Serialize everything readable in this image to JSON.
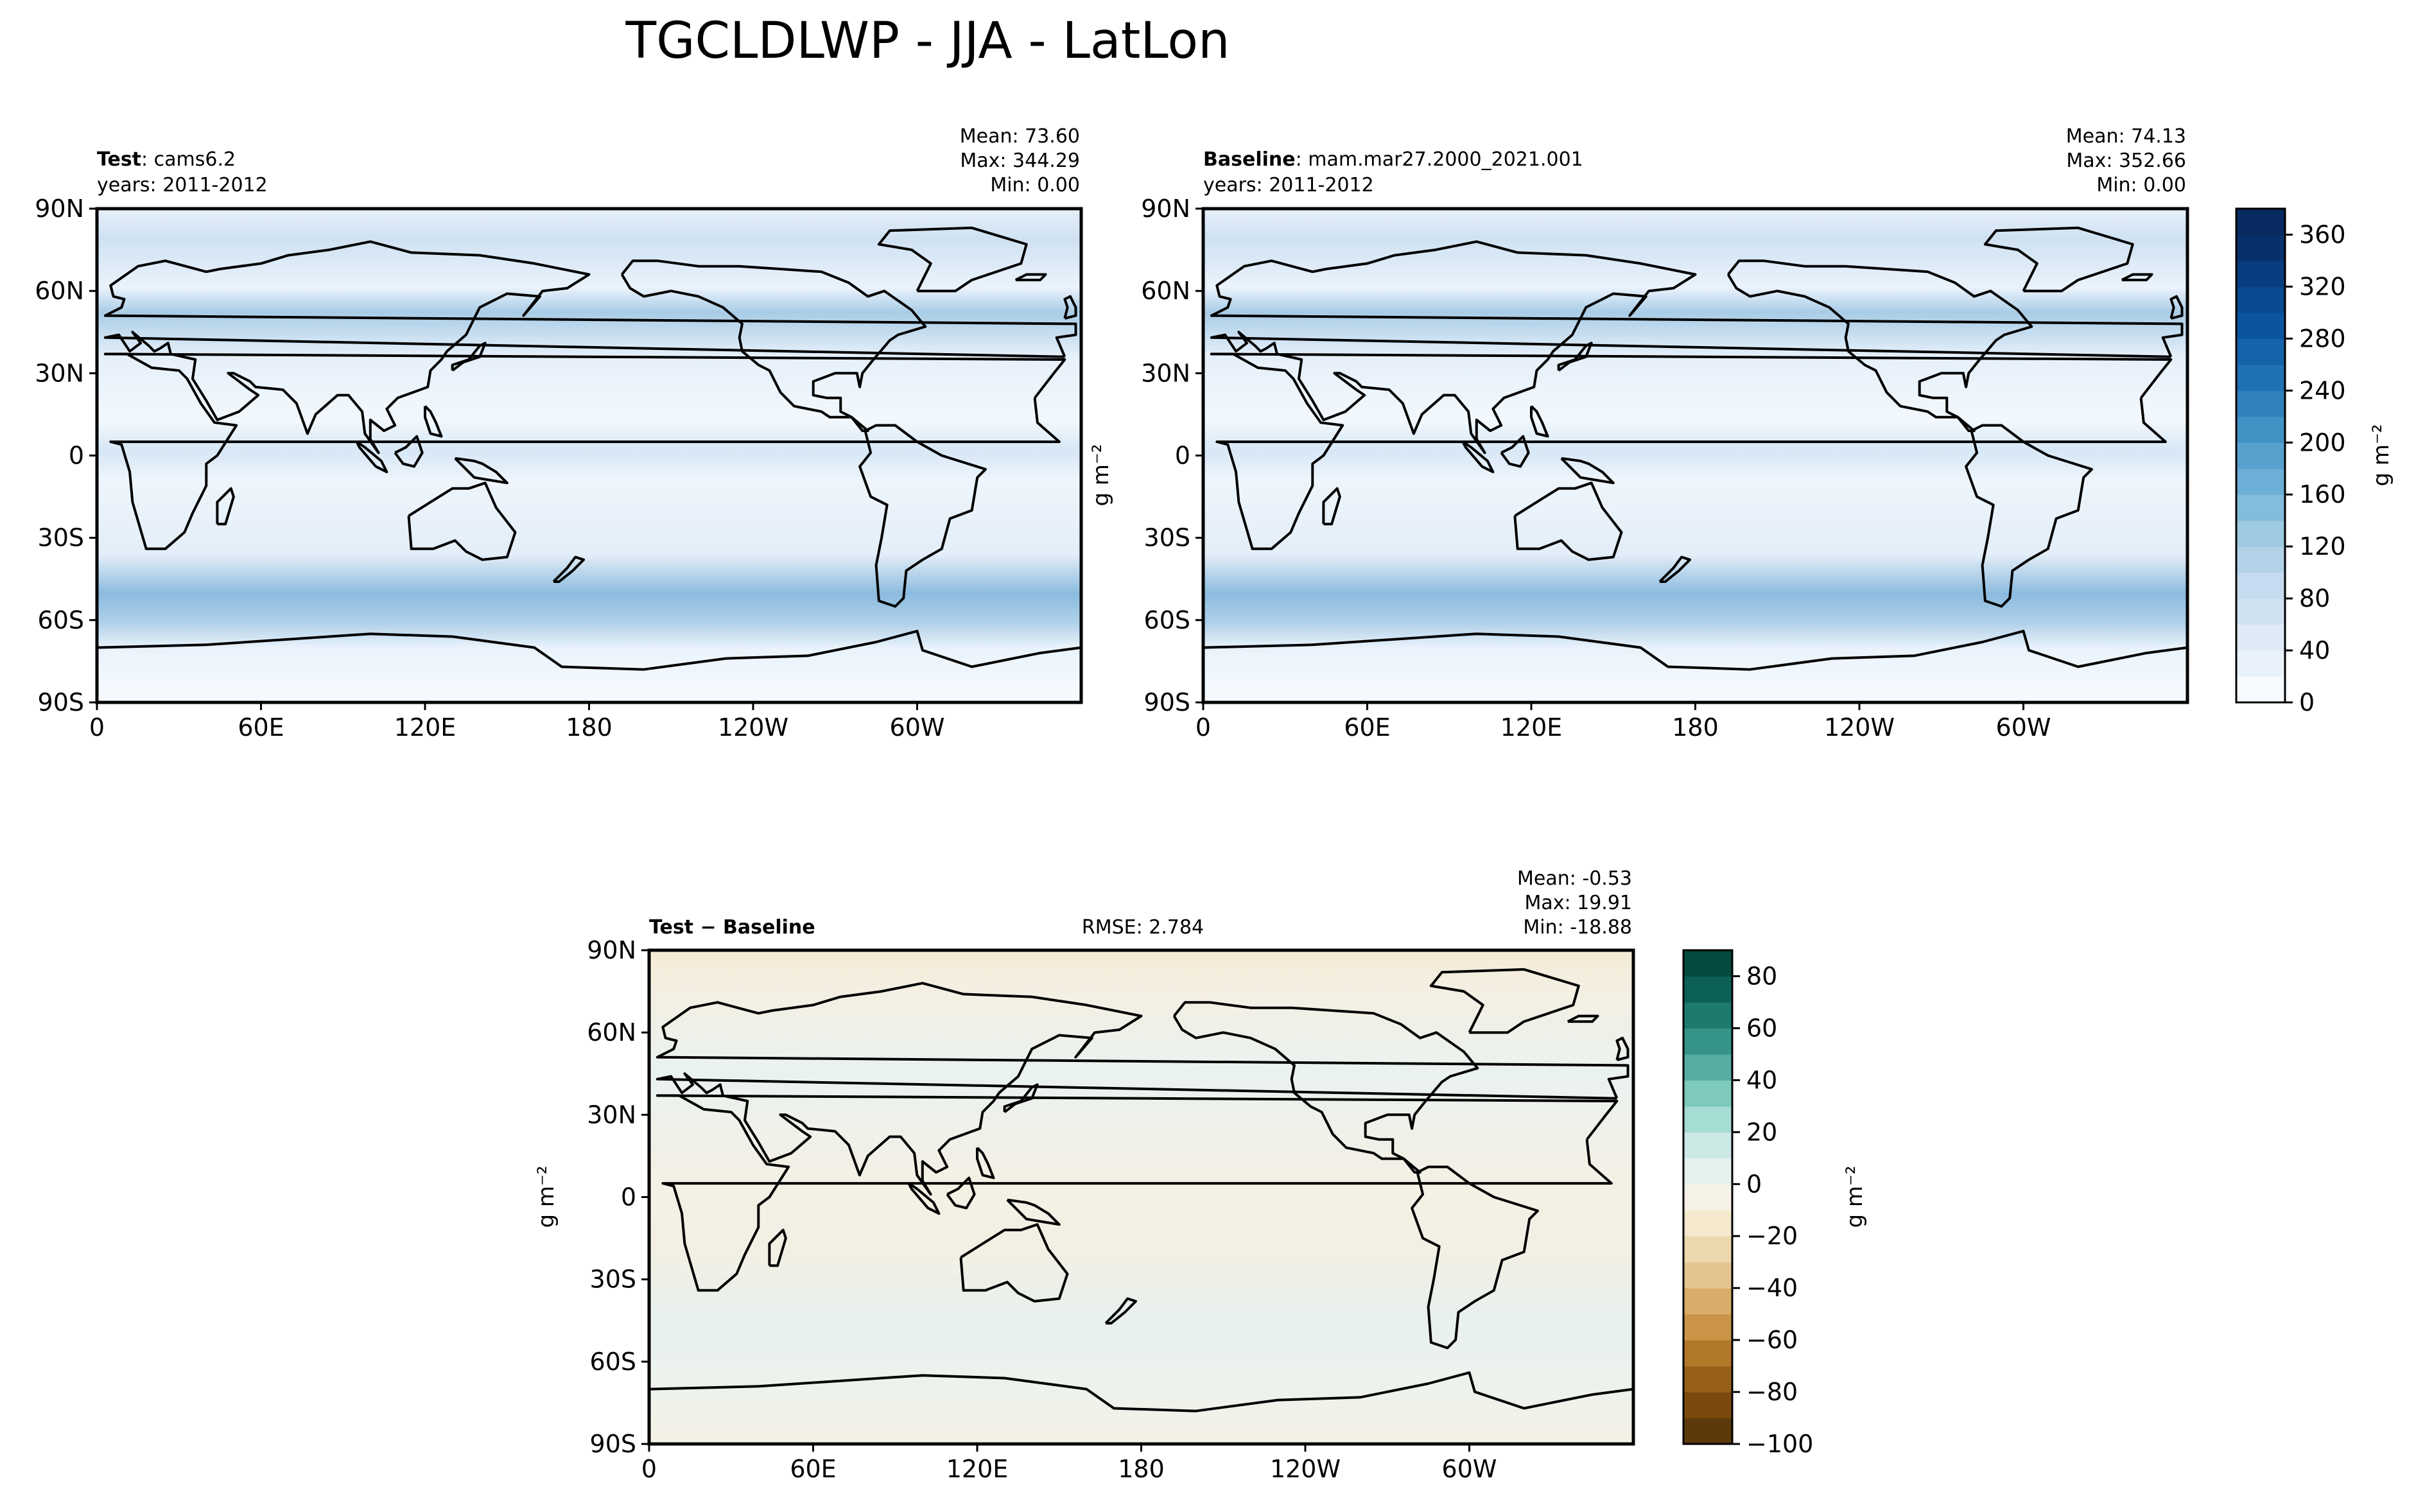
{
  "title": "TGCLDLWP - JJA - LatLon",
  "colors": {
    "frame": "#000000",
    "coast": "#000000",
    "ocean_base": "#eef5fc",
    "diff_base": "#f2efe2"
  },
  "panels": {
    "test": {
      "label_bold": "Test",
      "label_rest": ": cams6.2",
      "years": "years: 2011-2012",
      "mean": "Mean: 73.60",
      "max": "Max: 344.29",
      "min": "Min:  0.00"
    },
    "baseline": {
      "label_bold": "Baseline",
      "label_rest": ": mam.mar27.2000_2021.001",
      "years": "years: 2011-2012",
      "mean": "Mean: 74.13",
      "max": "Max: 352.66",
      "min": "Min:  0.00"
    },
    "diff": {
      "label": "Test − Baseline",
      "rmse": "RMSE: 2.784",
      "mean": "Mean: -0.53",
      "max": "Max: 19.91",
      "min": "Min: -18.88"
    }
  },
  "units": "g m⁻²",
  "chart_data": [
    {
      "type": "heatmap",
      "name": "Test",
      "variable": "TGCLDLWP",
      "xticks": [
        "0",
        "60E",
        "120E",
        "180",
        "120W",
        "60W"
      ],
      "yticks": [
        "90N",
        "60N",
        "30N",
        "0",
        "30S",
        "60S",
        "90S"
      ],
      "stats": {
        "mean": 73.6,
        "max": 344.29,
        "min": 0.0
      }
    },
    {
      "type": "heatmap",
      "name": "Baseline",
      "variable": "TGCLDLWP",
      "xticks": [
        "0",
        "60E",
        "120E",
        "180",
        "120W",
        "60W"
      ],
      "yticks": [
        "90N",
        "60N",
        "30N",
        "0",
        "30S",
        "60S",
        "90S"
      ],
      "stats": {
        "mean": 74.13,
        "max": 352.66,
        "min": 0.0
      }
    },
    {
      "type": "heatmap",
      "name": "Test − Baseline",
      "variable": "TGCLDLWP",
      "xticks": [
        "0",
        "60E",
        "120E",
        "180",
        "120W",
        "60W"
      ],
      "yticks": [
        "90N",
        "60N",
        "30N",
        "0",
        "30S",
        "60S",
        "90S"
      ],
      "stats": {
        "mean": -0.53,
        "max": 19.91,
        "min": -18.88,
        "rmse": 2.784
      }
    }
  ],
  "colorbars": {
    "main": {
      "levels": [
        0,
        20,
        40,
        60,
        80,
        100,
        120,
        140,
        160,
        180,
        200,
        220,
        240,
        260,
        280,
        300,
        320,
        340,
        360,
        380
      ],
      "ticks": [
        "0",
        "40",
        "80",
        "120",
        "160",
        "200",
        "240",
        "280",
        "320",
        "360"
      ],
      "colors": [
        "#f7fbff",
        "#e9f2fa",
        "#deebf7",
        "#d0e2f2",
        "#c6dbef",
        "#b2d2e8",
        "#9ecae1",
        "#84bcdb",
        "#6baed6",
        "#58a1cf",
        "#4292c6",
        "#3282be",
        "#2171b5",
        "#1663aa",
        "#0b559f",
        "#084990",
        "#083d7f",
        "#08306b",
        "#072a60"
      ]
    },
    "diff": {
      "levels": [
        -100,
        -90,
        -80,
        -70,
        -60,
        -50,
        -40,
        -30,
        -20,
        -10,
        0,
        10,
        20,
        30,
        40,
        50,
        60,
        70,
        80,
        90
      ],
      "ticks": [
        "−100",
        "−80",
        "−60",
        "−40",
        "−20",
        "0",
        "20",
        "40",
        "60",
        "80"
      ],
      "colors": [
        "#5c3a0b",
        "#7a4a0d",
        "#97601a",
        "#b2782a",
        "#c99448",
        "#d8ad6a",
        "#e4c590",
        "#ecd8ad",
        "#f4e9cc",
        "#f5f2e5",
        "#e6f2f0",
        "#cde9e5",
        "#a5dcd3",
        "#7ec9bd",
        "#56ada2",
        "#359487",
        "#1d7a6c",
        "#0b6154",
        "#044a3e"
      ]
    }
  }
}
